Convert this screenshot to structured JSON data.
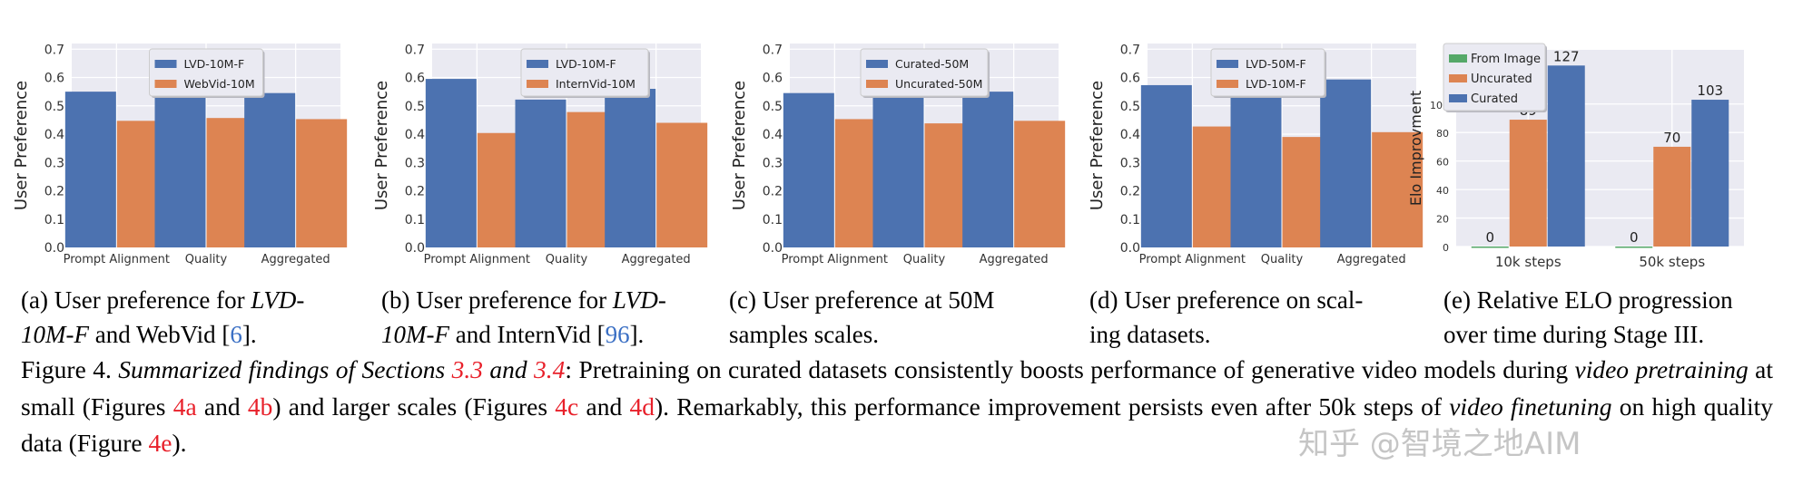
{
  "colors": {
    "blue": "#4c72b0",
    "orange": "#dd8452",
    "green": "#55a868",
    "plot_bg": "#eaeaf2",
    "ref_red": "#e8202a",
    "ref_blue": "#3a6fc4"
  },
  "chart_data": [
    {
      "type": "bar",
      "ylabel": "User Preference",
      "ylim": [
        0,
        0.72
      ],
      "yticks": [
        "0.0",
        "0.1",
        "0.2",
        "0.3",
        "0.4",
        "0.5",
        "0.6",
        "0.7"
      ],
      "categories": [
        "Prompt Alignment",
        "Quality",
        "Aggregated"
      ],
      "legend": "top-center",
      "grid": true,
      "series": [
        {
          "name": "LVD-10M-F",
          "color": "#4c72b0",
          "values": [
            0.55,
            0.54,
            0.545
          ]
        },
        {
          "name": "WebVid-10M",
          "color": "#dd8452",
          "values": [
            0.447,
            0.457,
            0.453
          ]
        }
      ]
    },
    {
      "type": "bar",
      "ylabel": "User Preference",
      "ylim": [
        0,
        0.72
      ],
      "yticks": [
        "0.0",
        "0.1",
        "0.2",
        "0.3",
        "0.4",
        "0.5",
        "0.6",
        "0.7"
      ],
      "categories": [
        "Prompt Alignment",
        "Quality",
        "Aggregated"
      ],
      "legend": "top-center",
      "grid": true,
      "series": [
        {
          "name": "LVD-10M-F",
          "color": "#4c72b0",
          "values": [
            0.595,
            0.522,
            0.56
          ]
        },
        {
          "name": "InternVid-10M",
          "color": "#dd8452",
          "values": [
            0.404,
            0.478,
            0.44
          ]
        }
      ]
    },
    {
      "type": "bar",
      "ylabel": "User Preference",
      "ylim": [
        0,
        0.72
      ],
      "yticks": [
        "0.0",
        "0.1",
        "0.2",
        "0.3",
        "0.4",
        "0.5",
        "0.6",
        "0.7"
      ],
      "categories": [
        "Prompt Alignment",
        "Quality",
        "Aggregated"
      ],
      "legend": "top-center",
      "grid": true,
      "series": [
        {
          "name": "Curated-50M",
          "color": "#4c72b0",
          "values": [
            0.545,
            0.56,
            0.55
          ]
        },
        {
          "name": "Uncurated-50M",
          "color": "#dd8452",
          "values": [
            0.453,
            0.438,
            0.447
          ]
        }
      ]
    },
    {
      "type": "bar",
      "ylabel": "User Preference",
      "ylim": [
        0,
        0.72
      ],
      "yticks": [
        "0.0",
        "0.1",
        "0.2",
        "0.3",
        "0.4",
        "0.5",
        "0.6",
        "0.7"
      ],
      "categories": [
        "Prompt Alignment",
        "Quality",
        "Aggregated"
      ],
      "legend": "top-left",
      "grid": true,
      "series": [
        {
          "name": "LVD-50M-F",
          "color": "#4c72b0",
          "values": [
            0.573,
            0.61,
            0.593
          ]
        },
        {
          "name": "LVD-10M-F",
          "color": "#dd8452",
          "values": [
            0.427,
            0.39,
            0.407
          ]
        }
      ]
    },
    {
      "type": "bar",
      "ylabel": "Elo Improvment",
      "ylim": [
        0,
        138
      ],
      "yticks": [
        "0",
        "20",
        "40",
        "60",
        "80",
        "100"
      ],
      "categories": [
        "10k steps",
        "50k steps"
      ],
      "legend": "top-left",
      "grid": true,
      "data_labels": true,
      "series": [
        {
          "name": "From Image",
          "color": "#55a868",
          "values": [
            0,
            0
          ]
        },
        {
          "name": "Uncurated",
          "color": "#dd8452",
          "values": [
            89,
            70
          ]
        },
        {
          "name": "Curated",
          "color": "#4c72b0",
          "values": [
            127,
            103
          ]
        }
      ]
    }
  ],
  "subcaptions": [
    [
      {
        "t": "(a)  User preference for "
      },
      {
        "t": "LVD-",
        "c": "it"
      },
      {
        "br": true
      },
      {
        "t": "10M-F",
        "c": "it"
      },
      {
        "t": " and WebVid ["
      },
      {
        "t": "6",
        "c": "blue"
      },
      {
        "t": "]."
      }
    ],
    [
      {
        "t": "(b)  User preference for "
      },
      {
        "t": "LVD-",
        "c": "it"
      },
      {
        "br": true
      },
      {
        "t": "10M-F",
        "c": "it"
      },
      {
        "t": " and InternVid ["
      },
      {
        "t": "96",
        "c": "blue"
      },
      {
        "t": "]."
      }
    ],
    [
      {
        "t": "(c)   User preference at 50M"
      },
      {
        "br": true
      },
      {
        "t": "samples scales."
      }
    ],
    [
      {
        "t": "(d)  User preference on scal-"
      },
      {
        "br": true
      },
      {
        "t": "ing datasets."
      }
    ],
    [
      {
        "t": "(e)  Relative ELO progression"
      },
      {
        "br": true
      },
      {
        "t": "over time during Stage III."
      }
    ]
  ],
  "caption": [
    {
      "t": "Figure 4.   "
    },
    {
      "t": "Summarized findings of Sections ",
      "c": "it"
    },
    {
      "t": "3.3",
      "c": "red it"
    },
    {
      "t": " and ",
      "c": "it"
    },
    {
      "t": "3.4",
      "c": "red it"
    },
    {
      "t": ": Pretraining on curated datasets consistently boosts performance of generative video models during "
    },
    {
      "t": "video pretraining",
      "c": "it"
    },
    {
      "t": " at small (Figures "
    },
    {
      "t": "4a",
      "c": "red"
    },
    {
      "t": " and "
    },
    {
      "t": "4b",
      "c": "red"
    },
    {
      "t": ") and larger scales (Figures "
    },
    {
      "t": "4c",
      "c": "red"
    },
    {
      "t": " and "
    },
    {
      "t": "4d",
      "c": "red"
    },
    {
      "t": "). Remarkably, this performance improvement persists even after 50k steps of "
    },
    {
      "t": "video finetuning",
      "c": "it"
    },
    {
      "t": " on high quality data (Figure "
    },
    {
      "t": "4e",
      "c": "red"
    },
    {
      "t": ")."
    }
  ],
  "watermark": "知乎 @智境之地AIM"
}
